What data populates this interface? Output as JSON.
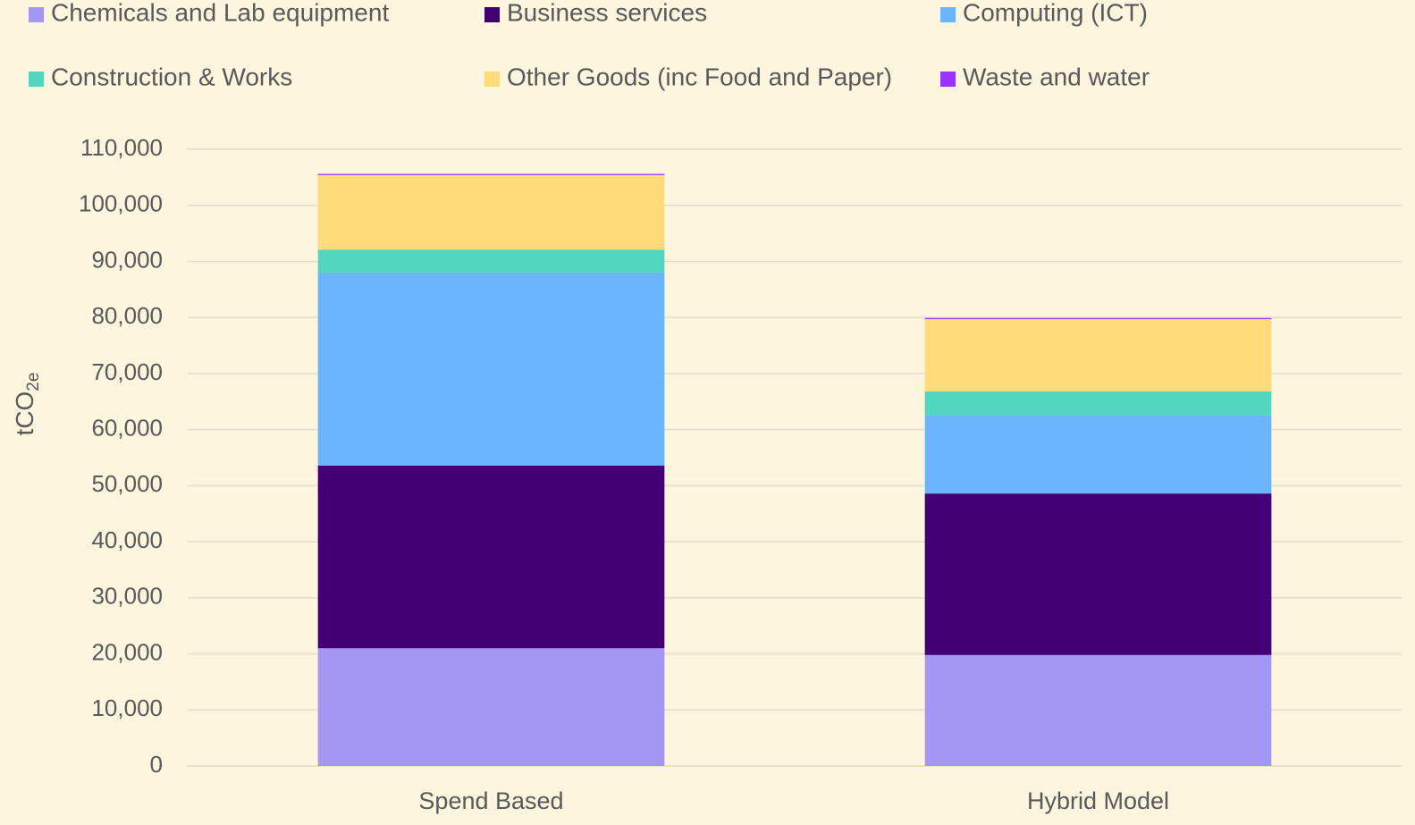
{
  "chart_data": {
    "type": "stacked_bar",
    "y_label": {
      "text": "tCO",
      "subscript": "2e"
    },
    "categories": [
      "Spend Based",
      "Hybrid Model"
    ],
    "series": [
      {
        "name": "Chemicals and Lab equipment",
        "color": "#a397f3",
        "values": [
          21000,
          19800
        ]
      },
      {
        "name": "Business services",
        "color": "#420074",
        "values": [
          32600,
          28800
        ]
      },
      {
        "name": "Computing (ICT)",
        "color": "#6bb5ff",
        "values": [
          34400,
          14000
        ]
      },
      {
        "name": "Construction & Works",
        "color": "#52d6c0",
        "values": [
          4100,
          4200
        ]
      },
      {
        "name": "Other Goods (inc Food and Paper)",
        "color": "#ffdc7a",
        "values": [
          13300,
          12900
        ]
      },
      {
        "name": "Waste and water",
        "color": "#9b30ff",
        "values": [
          200,
          200
        ]
      }
    ],
    "ylim": [
      0,
      110000
    ],
    "yticks": [
      0,
      {
        "value": 10000,
        "label": "10,000"
      },
      {
        "value": 20000,
        "label": "20,000"
      },
      {
        "value": 30000,
        "label": "30,000"
      },
      {
        "value": 40000,
        "label": "40,000"
      },
      {
        "value": 50000,
        "label": "50,000"
      },
      {
        "value": 60000,
        "label": "60,000"
      },
      {
        "value": 70000,
        "label": "70,000"
      },
      {
        "value": 80000,
        "label": "80,000"
      },
      {
        "value": 90000,
        "label": "90,000"
      },
      {
        "value": 100000,
        "label": "100,000"
      },
      {
        "value": 110000,
        "label": "110,000"
      }
    ],
    "grid": true,
    "legend": "top"
  }
}
